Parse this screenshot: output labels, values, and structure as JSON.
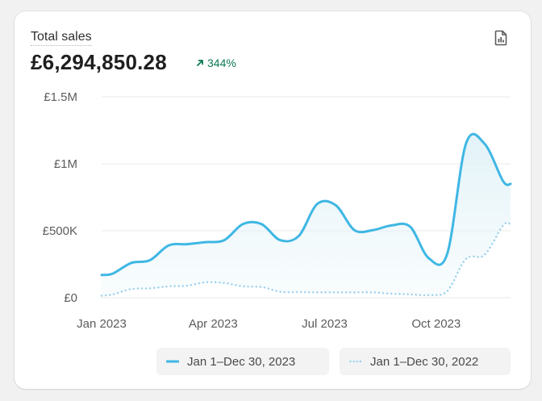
{
  "card": {
    "title": "Total sales",
    "total": "£6,294,850.28",
    "change": "344%",
    "export_icon": "report-icon"
  },
  "colors": {
    "primary": "#3fb7e4",
    "comparison": "#9fd3ec",
    "positive": "#0c7a51"
  },
  "chart_data": {
    "type": "line",
    "y_ticks": [
      {
        "value": 0,
        "label": "£0"
      },
      {
        "value": 500000,
        "label": "£500K"
      },
      {
        "value": 1000000,
        "label": "£1M"
      },
      {
        "value": 1500000,
        "label": "£1.5M"
      }
    ],
    "ylim": [
      0,
      1500000
    ],
    "x_ticks": [
      {
        "index": 0,
        "label": "Jan 2023"
      },
      {
        "index": 3,
        "label": "Apr 2023"
      },
      {
        "index": 6,
        "label": "Jul 2023"
      },
      {
        "index": 9,
        "label": "Oct 2023"
      }
    ],
    "x_count": 12,
    "grid": true,
    "series": [
      {
        "name": "Jan 1–Dec 30, 2023",
        "style": "solid",
        "points": [
          [
            0,
            170000
          ],
          [
            0.3,
            180000
          ],
          [
            0.8,
            260000
          ],
          [
            1.3,
            280000
          ],
          [
            1.8,
            390000
          ],
          [
            2.3,
            400000
          ],
          [
            2.8,
            415000
          ],
          [
            3.3,
            430000
          ],
          [
            3.8,
            550000
          ],
          [
            4.3,
            550000
          ],
          [
            4.8,
            430000
          ],
          [
            5.3,
            460000
          ],
          [
            5.8,
            700000
          ],
          [
            6.3,
            690000
          ],
          [
            6.8,
            505000
          ],
          [
            7.3,
            505000
          ],
          [
            7.8,
            540000
          ],
          [
            8.3,
            530000
          ],
          [
            8.8,
            295000
          ],
          [
            9.3,
            330000
          ],
          [
            9.8,
            1150000
          ],
          [
            10.3,
            1150000
          ],
          [
            10.8,
            870000
          ],
          [
            11,
            850000
          ]
        ]
      },
      {
        "name": "Jan 1–Dec 30, 2022",
        "style": "dotted",
        "points": [
          [
            0,
            15000
          ],
          [
            0.3,
            25000
          ],
          [
            0.8,
            65000
          ],
          [
            1.3,
            70000
          ],
          [
            1.8,
            85000
          ],
          [
            2.3,
            90000
          ],
          [
            2.8,
            115000
          ],
          [
            3.3,
            110000
          ],
          [
            3.8,
            85000
          ],
          [
            4.3,
            80000
          ],
          [
            4.8,
            45000
          ],
          [
            5.3,
            42000
          ],
          [
            5.8,
            40000
          ],
          [
            6.3,
            40000
          ],
          [
            6.8,
            40000
          ],
          [
            7.3,
            40000
          ],
          [
            7.8,
            30000
          ],
          [
            8.3,
            25000
          ],
          [
            8.8,
            20000
          ],
          [
            9.3,
            50000
          ],
          [
            9.8,
            290000
          ],
          [
            10.3,
            320000
          ],
          [
            10.8,
            540000
          ],
          [
            11,
            550000
          ]
        ]
      }
    ]
  },
  "legend": {
    "current_label": "Jan 1–Dec 30, 2023",
    "previous_label": "Jan 1–Dec 30, 2022"
  }
}
